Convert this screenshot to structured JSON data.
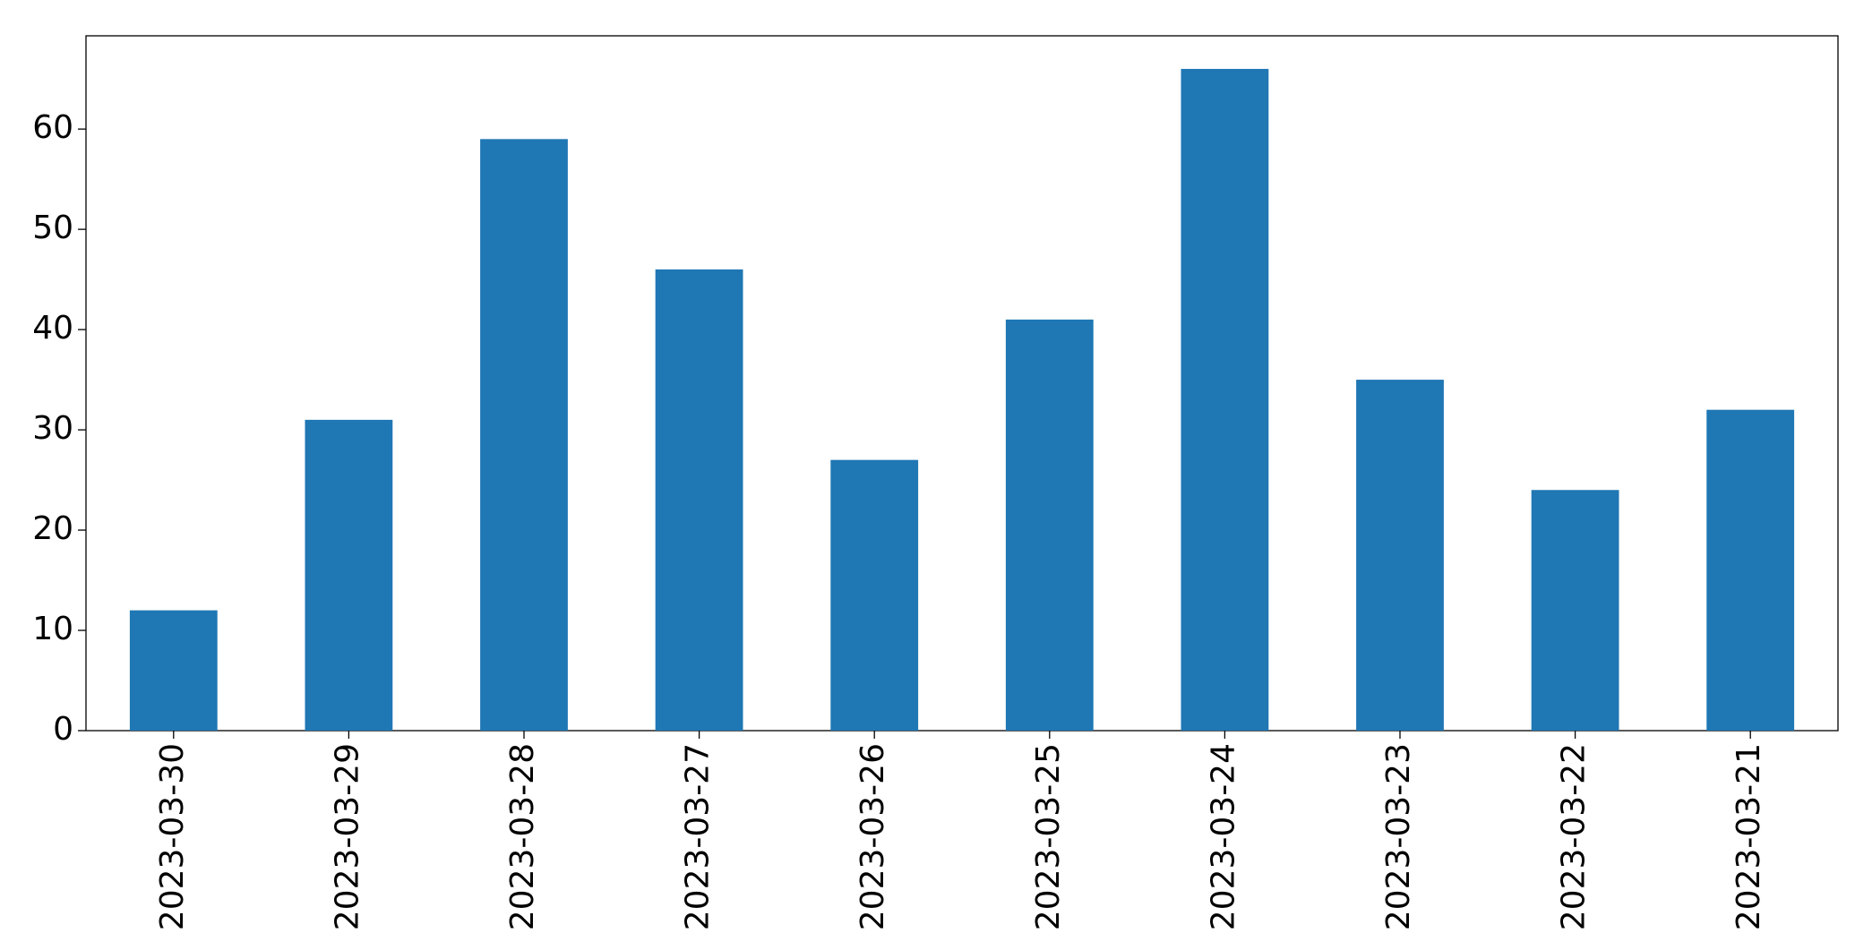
{
  "chart_data": {
    "type": "bar",
    "categories": [
      "2023-03-30",
      "2023-03-29",
      "2023-03-28",
      "2023-03-27",
      "2023-03-26",
      "2023-03-25",
      "2023-03-24",
      "2023-03-23",
      "2023-03-22",
      "2023-03-21"
    ],
    "values": [
      12,
      31,
      59,
      46,
      27,
      41,
      66,
      35,
      24,
      32
    ],
    "color": "#1f77b4",
    "ylim": [
      0,
      69.3
    ],
    "yticks": [
      0,
      10,
      20,
      30,
      40,
      50,
      60
    ],
    "grid": false
  }
}
